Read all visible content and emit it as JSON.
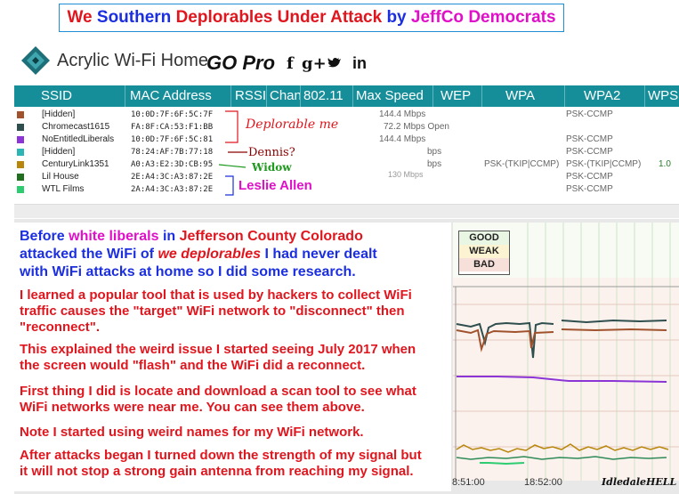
{
  "banner": {
    "w1": "We",
    "w2": "Southern",
    "w3": "Deplorables",
    "w4": "Under Attack",
    "w5": "by",
    "w6": "JeffCo Democrats"
  },
  "app": {
    "title": "Acrylic Wi-Fi Home",
    "go_pro": "GO Pro",
    "social": [
      "f",
      "g+",
      "twitter-icon",
      "in"
    ]
  },
  "columns": [
    "SSID",
    "MAC Address",
    "RSSI",
    "Chan",
    "802.11",
    "Max Speed",
    "WEP",
    "WPA",
    "WPA2",
    "WPS"
  ],
  "networks": [
    {
      "ssid": "[Hidden]",
      "mac": "10:0D:7F:6F:5C:7F",
      "speed": "144.4 Mbps",
      "wpa": "",
      "wpa2": "PSK-CCMP",
      "wps": "",
      "color": "#a0522d"
    },
    {
      "ssid": "Chromecast1615",
      "mac": "FA:8F:CA:53:F1:BB",
      "speed": "72.2 Mbps Open",
      "wpa": "",
      "wpa2": "",
      "wps": "",
      "color": "#2f4f4f"
    },
    {
      "ssid": "NoEntitledLiberals",
      "mac": "10:0D:7F:6F:5C:81",
      "speed": "144.4 Mbps",
      "wpa": "",
      "wpa2": "PSK-CCMP",
      "wps": "",
      "color": "#8b35d6"
    },
    {
      "ssid": "[Hidden]",
      "mac": "78:24:AF:7B:77:18",
      "speed": "bps",
      "wpa": "",
      "wpa2": "PSK-CCMP",
      "wps": "",
      "color": "#2bb5b5"
    },
    {
      "ssid": "CenturyLink1351",
      "mac": "A0:A3:E2:3D:CB:95",
      "speed": "bps",
      "wpa": "PSK-(TKIP|CCMP)",
      "wpa2": "PSK-(TKIP|CCMP)",
      "wps": "1.0",
      "color": "#b8860b"
    },
    {
      "ssid": "Lil House",
      "mac": "2E:A4:3C:A3:87:2E",
      "speed": "130 Mbps",
      "wpa": "",
      "wpa2": "PSK-CCMP",
      "wps": "",
      "color": "#1f6f1f"
    },
    {
      "ssid": "WTL Films",
      "mac": "2A:A4:3C:A3:87:2E",
      "speed": "",
      "wpa": "",
      "wpa2": "PSK-CCMP",
      "wps": "",
      "color": "#2ecc71"
    }
  ],
  "annotations": {
    "deplorable": "Deplorable me",
    "dennis": "Dennis?",
    "widow": "Widow",
    "leslie": "Leslie Allen"
  },
  "story": {
    "p1a": "Before ",
    "p1b": "white liberals",
    "p1c": " in ",
    "p1d": "Jefferson County Colorado",
    "p1e": "attacked the WiFi of ",
    "p1f": "we deplorables",
    "p1g": " I had never dealt",
    "p1h": "with WiFi attacks at home so I did some research.",
    "p2a": "I learned a popular tool that is used by hackers to collect WiFi",
    "p2b": "traffic causes the \"target\" WiFi network to \"disconnect\" then",
    "p2c": "\"reconnect\".",
    "p3a": "This explained the weird issue I started seeing July 2017 when",
    "p3b": "the screen would \"flash\" and the WiFi did a reconnect.",
    "p4a": "First thing I did is locate and download a scan tool to see what",
    "p4b": "WiFi networks were near me. You can see them above.",
    "p5": "Note I started using weird names for my WiFi network.",
    "p6a": "After attacks began I turned down the strength of my signal but",
    "p6b": "it will not stop a strong gain antenna from reaching my signal."
  },
  "chart": {
    "legend": [
      "GOOD",
      "WEAK",
      "BAD"
    ],
    "times": [
      "8:51:00",
      "18:52:00"
    ],
    "signature": "IdledaleHELL"
  }
}
